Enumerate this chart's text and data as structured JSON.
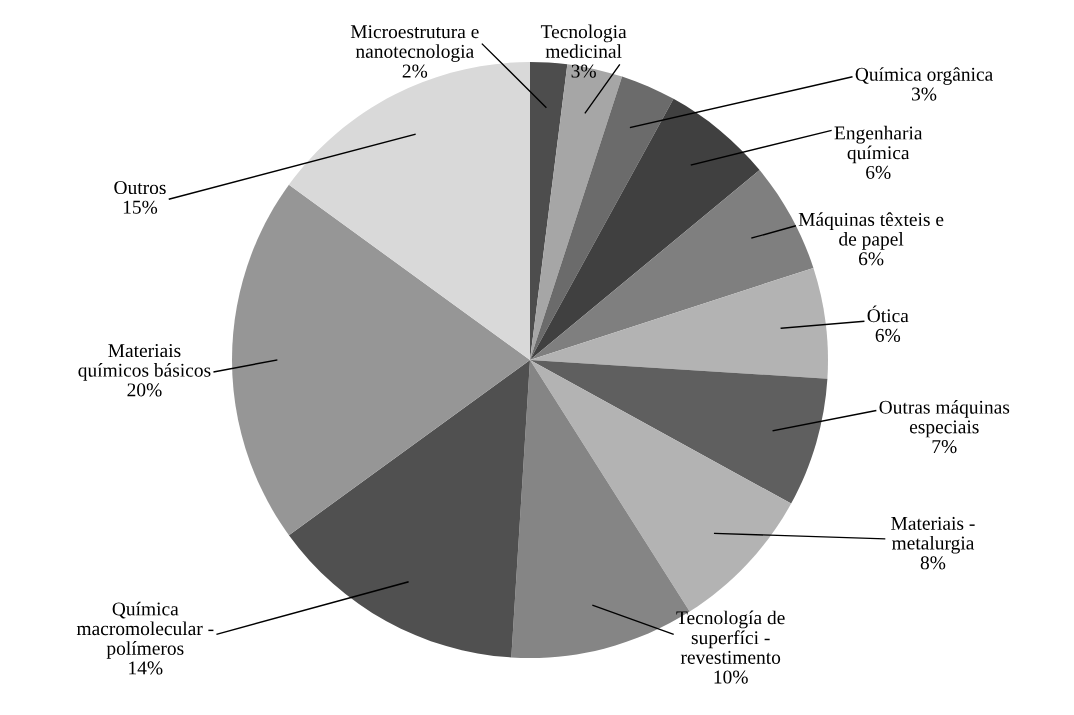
{
  "chart_data": {
    "type": "pie",
    "categories": [
      "Microestrutura e\nnanotecnologia",
      "Tecnologia\nmedicinal",
      "Química orgânica",
      "Engenharia\nquímica",
      "Máquinas têxteis e\nde papel",
      "Ótica",
      "Outras máquinas\nespeciais",
      "Materiais -\nmetalurgia",
      "Tecnología de\nsuperfíci -\nrevestimento",
      "Química\nmacromolecular -\npolímeros",
      "Materiais\nquímicos básicos",
      "Outros"
    ],
    "values": [
      2,
      3,
      3,
      6,
      6,
      6,
      7,
      8,
      10,
      14,
      20,
      15
    ],
    "value_labels": [
      "2%",
      "3%",
      "3%",
      "6%",
      "6%",
      "6%",
      "7%",
      "8%",
      "10%",
      "14%",
      "20%",
      "15%"
    ],
    "colors": [
      "#4d4d4d",
      "#a6a6a6",
      "#6b6b6b",
      "#404040",
      "#7f7f7f",
      "#b3b3b3",
      "#5f5f5f",
      "#b3b3b3",
      "#858585",
      "#505050",
      "#969696",
      "#d9d9d9"
    ]
  }
}
